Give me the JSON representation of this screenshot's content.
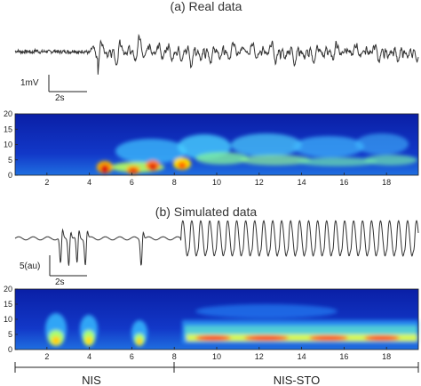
{
  "chart_data": [
    {
      "type": "line",
      "title": "(a) Real data",
      "scalebar": {
        "amplitude_label": "1mV",
        "time_label": "2s"
      },
      "x": [
        0,
        0.5,
        1,
        1.5,
        2,
        2.5,
        3,
        3.5,
        4,
        4.5,
        5,
        5.5,
        6,
        6.5,
        7,
        7.5,
        8,
        8.5,
        9,
        9.5,
        10,
        10.5,
        11,
        11.5,
        12,
        12.5,
        13,
        13.5,
        14,
        14.5,
        15,
        15.5,
        16,
        16.5,
        17,
        17.5,
        18,
        18.5,
        19,
        19.5
      ],
      "y": [
        0.1,
        0.0,
        0.15,
        -0.05,
        0.1,
        0.0,
        0.2,
        -0.1,
        -1.1,
        0.3,
        -0.8,
        0.4,
        -0.9,
        0.5,
        -0.6,
        0.6,
        -0.5,
        0.7,
        -0.4,
        0.6,
        -0.5,
        0.7,
        -0.4,
        0.6,
        -0.3,
        0.7,
        -0.4,
        0.6,
        -0.3,
        0.6,
        -0.4,
        0.6,
        -0.3,
        0.5,
        -0.3,
        0.6,
        -0.3,
        0.5,
        -0.3,
        0.5
      ]
    },
    {
      "type": "heatmap",
      "title": "",
      "yticks": [
        "0",
        "5",
        "10",
        "15",
        "20"
      ],
      "xticks": [
        "2",
        "4",
        "6",
        "8",
        "10",
        "12",
        "14",
        "16",
        "18"
      ],
      "ylim": [
        0,
        20
      ],
      "xlim": [
        0.5,
        19.5
      ]
    },
    {
      "type": "line",
      "title": "(b) Simulated data",
      "scalebar": {
        "amplitude_label": "5(au)",
        "time_label": "2s"
      },
      "x": [
        0,
        0.5,
        1,
        1.5,
        2,
        2.5,
        3,
        3.5,
        4,
        4.5,
        5,
        5.5,
        6,
        6.5,
        7,
        7.5,
        8,
        8.5,
        9,
        9.5,
        10,
        10.5,
        11,
        11.5,
        12,
        12.5,
        13,
        13.5,
        14,
        14.5,
        15,
        15.5,
        16,
        16.5,
        17,
        17.5,
        18,
        18.5,
        19,
        19.5
      ],
      "y": [
        0.0,
        0.0,
        0.0,
        0.0,
        0.0,
        -1.0,
        -1.0,
        -1.0,
        -1.0,
        0.0,
        0.0,
        0.0,
        0.0,
        -1.0,
        0.0,
        0.0,
        0.0,
        1.0,
        -1.0,
        1.0,
        -1.0,
        1.0,
        -1.0,
        1.0,
        -1.0,
        1.0,
        -1.0,
        1.0,
        -1.0,
        1.0,
        -1.0,
        1.0,
        -1.0,
        1.0,
        -1.0,
        1.0,
        -1.0,
        1.0,
        -1.0,
        1.0
      ]
    },
    {
      "type": "heatmap",
      "title": "",
      "yticks": [
        "0",
        "5",
        "10",
        "15",
        "20"
      ],
      "xticks": [
        "2",
        "4",
        "6",
        "8",
        "10",
        "12",
        "14",
        "16",
        "18"
      ],
      "ylim": [
        0,
        20
      ],
      "xlim": [
        0.5,
        19.5
      ]
    }
  ],
  "segments": [
    {
      "label": "NIS",
      "from": 0.5,
      "to": 8
    },
    {
      "label": "NIS-STO",
      "from": 8,
      "to": 19.5
    }
  ]
}
